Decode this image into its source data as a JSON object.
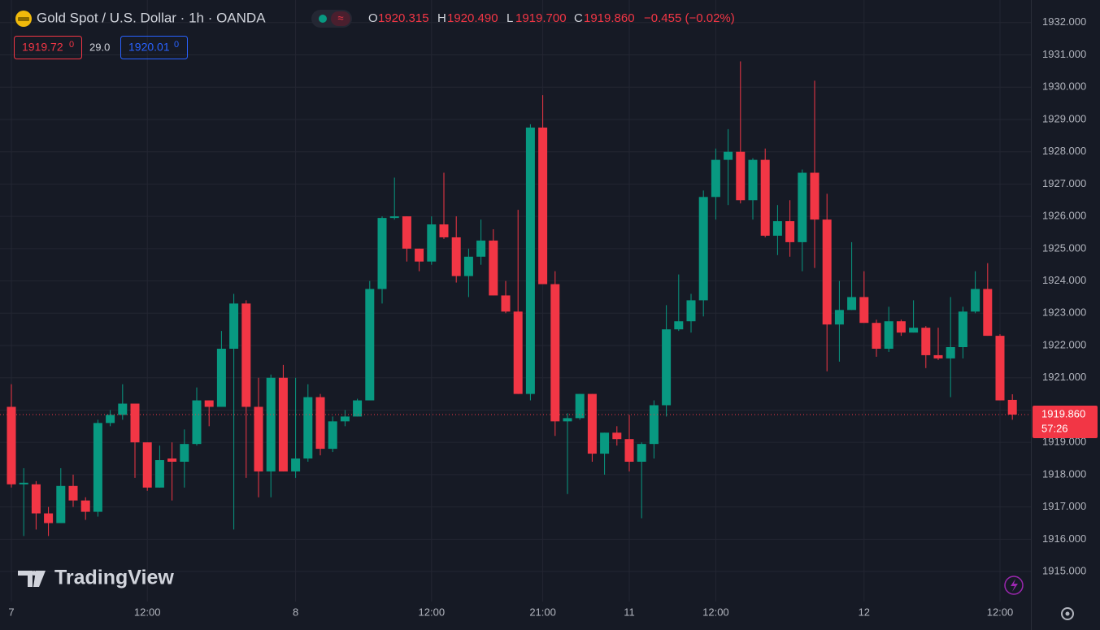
{
  "header": {
    "open_label": "O",
    "open": "1920.315",
    "high_label": "H",
    "high": "1920.490",
    "low_label": "L",
    "low": "1919.700",
    "close_label": "C",
    "close": "1919.860",
    "change": "−0.455 (−0.02%)",
    "bid": "1919.72",
    "bid_sub": "0",
    "spread": "29.0",
    "ask": "1920.01",
    "ask_sub": "0"
  },
  "watermark": "TradingView",
  "chart_data": {
    "type": "candlestick",
    "title": "Gold Spot / U.S. Dollar · 1h · OANDA",
    "categories": [
      "7",
      null,
      null,
      null,
      null,
      null,
      null,
      null,
      null,
      null,
      null,
      "12:00",
      null,
      null,
      null,
      null,
      null,
      null,
      null,
      null,
      null,
      null,
      null,
      "8",
      null,
      null,
      null,
      null,
      null,
      null,
      null,
      null,
      null,
      null,
      "12:00",
      null,
      null,
      null,
      null,
      null,
      null,
      null,
      null,
      "21:00",
      null,
      null,
      null,
      null,
      null,
      null,
      "11",
      null,
      null,
      null,
      null,
      null,
      null,
      "12:00",
      null,
      null,
      null,
      null,
      null,
      null,
      null,
      null,
      null,
      null,
      null,
      "12",
      null,
      null,
      null,
      null,
      null,
      null,
      null,
      null,
      null,
      null,
      "12:00",
      null
    ],
    "open": [
      1920.1,
      1917.7,
      1917.7,
      1916.8,
      1916.5,
      1917.65,
      1917.2,
      1916.85,
      1919.6,
      1919.85,
      1920.2,
      1919.0,
      1917.6,
      1918.5,
      1918.4,
      1918.95,
      1920.3,
      1920.1,
      1921.9,
      1923.3,
      1920.1,
      1918.1,
      1921.0,
      1918.1,
      1918.5,
      1920.4,
      1918.8,
      1919.65,
      1919.8,
      1920.3,
      1923.75,
      1925.95,
      1926.0,
      1925.0,
      1924.6,
      1925.75,
      1925.35,
      1924.15,
      1924.75,
      1925.25,
      1923.55,
      1923.05,
      1920.5,
      1928.75,
      1923.9,
      1919.65,
      1919.75,
      1920.5,
      1918.65,
      1919.3,
      1919.1,
      1918.4,
      1918.95,
      1920.15,
      1922.5,
      1922.75,
      1923.4,
      1926.6,
      1927.75,
      1928.0,
      1926.5,
      1927.75,
      1925.4,
      1925.85,
      1925.2,
      1927.35,
      1925.9,
      1922.65,
      1923.1,
      1923.5,
      1922.7,
      1921.9,
      1922.75,
      1922.4,
      1922.55,
      1921.7,
      1921.6,
      1921.95,
      1923.05,
      1923.75,
      1922.3,
      1920.315
    ],
    "high": [
      1920.8,
      1918.2,
      1917.8,
      1917.0,
      1918.2,
      1918.0,
      1917.3,
      1919.7,
      1920.0,
      1920.8,
      1920.2,
      1919.0,
      1918.9,
      1919.0,
      1919.4,
      1920.7,
      1920.3,
      1922.45,
      1923.6,
      1923.4,
      1921.0,
      1921.1,
      1921.4,
      1921.0,
      1920.8,
      1920.5,
      1919.8,
      1920.0,
      1920.35,
      1924.0,
      1926.0,
      1927.2,
      1926.0,
      1925.0,
      1926.0,
      1927.35,
      1926.0,
      1925.0,
      1925.9,
      1925.6,
      1924.0,
      1926.2,
      1928.85,
      1929.75,
      1924.3,
      1919.9,
      1920.5,
      1920.5,
      1919.3,
      1919.5,
      1919.85,
      1919.0,
      1920.3,
      1923.25,
      1924.2,
      1923.6,
      1926.8,
      1928.1,
      1928.7,
      1930.8,
      1927.8,
      1928.1,
      1926.35,
      1926.5,
      1927.45,
      1930.2,
      1926.7,
      1924.0,
      1925.2,
      1924.3,
      1922.8,
      1923.2,
      1922.8,
      1923.4,
      1922.6,
      1922.55,
      1923.5,
      1923.2,
      1924.3,
      1924.55,
      1922.35,
      1920.49
    ],
    "low": [
      1917.6,
      1916.1,
      1916.3,
      1916.1,
      1916.5,
      1917.0,
      1916.6,
      1916.7,
      1919.5,
      1919.7,
      1917.9,
      1917.5,
      1917.6,
      1917.2,
      1917.6,
      1918.9,
      1919.5,
      1920.1,
      1916.3,
      1917.9,
      1917.3,
      1917.3,
      1918.1,
      1917.9,
      1918.4,
      1918.6,
      1918.7,
      1919.5,
      1919.8,
      1920.3,
      1923.3,
      1925.9,
      1924.6,
      1924.3,
      1924.5,
      1925.3,
      1923.95,
      1923.5,
      1924.5,
      1923.55,
      1923.0,
      1920.5,
      1920.3,
      1923.9,
      1919.2,
      1917.4,
      1919.7,
      1918.4,
      1918.0,
      1918.9,
      1918.1,
      1916.65,
      1918.5,
      1919.8,
      1922.45,
      1922.4,
      1922.9,
      1925.9,
      1926.35,
      1926.4,
      1925.9,
      1925.35,
      1924.8,
      1924.75,
      1924.3,
      1924.4,
      1921.2,
      1921.5,
      1923.1,
      1922.7,
      1921.65,
      1921.8,
      1922.3,
      1922.4,
      1921.3,
      1921.55,
      1920.4,
      1921.6,
      1923.0,
      1922.3,
      1920.3,
      1919.7
    ],
    "close": [
      1917.7,
      1917.75,
      1916.8,
      1916.5,
      1917.65,
      1917.2,
      1916.85,
      1919.6,
      1919.85,
      1920.2,
      1919.0,
      1917.6,
      1918.45,
      1918.4,
      1918.95,
      1920.3,
      1920.1,
      1921.9,
      1923.3,
      1920.1,
      1918.1,
      1921.0,
      1918.1,
      1918.5,
      1920.4,
      1918.8,
      1919.65,
      1919.8,
      1920.3,
      1923.75,
      1925.95,
      1926.0,
      1925.0,
      1924.6,
      1925.75,
      1925.35,
      1924.15,
      1924.75,
      1925.25,
      1923.55,
      1923.05,
      1920.5,
      1928.75,
      1923.9,
      1919.65,
      1919.75,
      1920.5,
      1918.65,
      1919.3,
      1919.1,
      1918.4,
      1918.95,
      1920.15,
      1922.5,
      1922.75,
      1923.4,
      1926.6,
      1927.75,
      1928.0,
      1926.5,
      1927.75,
      1925.4,
      1925.85,
      1925.2,
      1927.35,
      1925.9,
      1922.65,
      1923.1,
      1923.5,
      1922.7,
      1921.9,
      1922.75,
      1922.4,
      1922.55,
      1921.7,
      1921.6,
      1921.95,
      1923.05,
      1923.75,
      1922.3,
      1920.3,
      1919.86
    ],
    "up_color": "#089981",
    "down_color": "#f23645",
    "ylim": [
      1914.07,
      1932.7
    ],
    "yticks": [
      {
        "value": 1915,
        "label": "1915.000"
      },
      {
        "value": 1916,
        "label": "1916.000"
      },
      {
        "value": 1917,
        "label": "1917.000"
      },
      {
        "value": 1918,
        "label": "1918.000"
      },
      {
        "value": 1919,
        "label": "1919.000"
      },
      {
        "value": 1920,
        "label": "1920.000"
      },
      {
        "value": 1921,
        "label": "1921.000"
      },
      {
        "value": 1922,
        "label": "1922.000"
      },
      {
        "value": 1923,
        "label": "1923.000"
      },
      {
        "value": 1924,
        "label": "1924.000"
      },
      {
        "value": 1925,
        "label": "1925.000"
      },
      {
        "value": 1926,
        "label": "1926.000"
      },
      {
        "value": 1927,
        "label": "1927.000"
      },
      {
        "value": 1928,
        "label": "1928.000"
      },
      {
        "value": 1929,
        "label": "1929.000"
      },
      {
        "value": 1930,
        "label": "1930.000"
      },
      {
        "value": 1931,
        "label": "1931.000"
      },
      {
        "value": 1932,
        "label": "1932.000"
      }
    ],
    "grid": true,
    "last_price": {
      "value": 1919.86,
      "label": "1919.860"
    },
    "countdown": "57:26"
  }
}
